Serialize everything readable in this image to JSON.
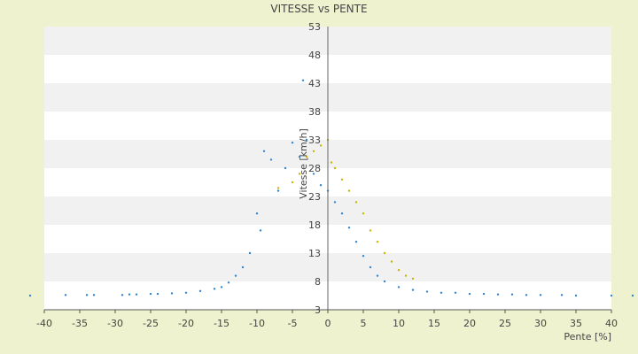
{
  "chart_data": {
    "type": "scatter",
    "title": "VITESSE vs PENTE",
    "xlabel": "Pente [%]",
    "ylabel": "Vitesse [km/h]",
    "xlim": [
      -40,
      40
    ],
    "ylim": [
      3,
      53
    ],
    "x_ticks": [
      -40,
      -35,
      -30,
      -25,
      -20,
      -15,
      -10,
      -5,
      0,
      5,
      10,
      15,
      20,
      25,
      30,
      35,
      40
    ],
    "y_ticks": [
      3,
      8,
      13,
      18,
      23,
      28,
      33,
      38,
      43,
      48,
      53
    ],
    "grid": "horizontal bands",
    "legend": "none",
    "colors": {
      "background": "#eef2cf",
      "band_light": "#ffffff",
      "band_dark": "#f1f1f1",
      "series_blue": "#2f86d6",
      "series_yellow": "#c8b400",
      "axis": "#555555",
      "zero_line": "#666666"
    },
    "series": [
      {
        "color": "#2f86d6",
        "points": [
          [
            -42,
            5.5
          ],
          [
            -37,
            5.6
          ],
          [
            -34,
            5.6
          ],
          [
            -33,
            5.6
          ],
          [
            -29,
            5.6
          ],
          [
            -28,
            5.7
          ],
          [
            -27,
            5.7
          ],
          [
            -25,
            5.8
          ],
          [
            -24,
            5.8
          ],
          [
            -22,
            5.9
          ],
          [
            -20,
            6.0
          ],
          [
            -18,
            6.3
          ],
          [
            -16,
            6.7
          ],
          [
            -15,
            7.0
          ],
          [
            -14,
            7.8
          ],
          [
            -13,
            9.0
          ],
          [
            -12,
            10.5
          ],
          [
            -11,
            13.0
          ],
          [
            -10,
            20.0
          ],
          [
            -9.5,
            17.0
          ],
          [
            -9,
            31.0
          ],
          [
            -8,
            29.5
          ],
          [
            -7,
            24.0
          ],
          [
            -6,
            28.0
          ],
          [
            -5,
            32.5
          ],
          [
            -4,
            30.0
          ],
          [
            -3.5,
            43.5
          ],
          [
            -3,
            33.0
          ],
          [
            -2,
            27.0
          ],
          [
            -1,
            25.0
          ],
          [
            0,
            24.0
          ],
          [
            1,
            22.0
          ],
          [
            2,
            20.0
          ],
          [
            3,
            17.5
          ],
          [
            4,
            15.0
          ],
          [
            5,
            12.5
          ],
          [
            6,
            10.5
          ],
          [
            7,
            9.0
          ],
          [
            8,
            8.0
          ],
          [
            10,
            7.0
          ],
          [
            12,
            6.5
          ],
          [
            14,
            6.2
          ],
          [
            16,
            6.0
          ],
          [
            18,
            6.0
          ],
          [
            20,
            5.8
          ],
          [
            22,
            5.8
          ],
          [
            24,
            5.7
          ],
          [
            26,
            5.7
          ],
          [
            28,
            5.6
          ],
          [
            30,
            5.6
          ],
          [
            33,
            5.6
          ],
          [
            35,
            5.5
          ],
          [
            40,
            5.5
          ],
          [
            43,
            5.5
          ]
        ]
      },
      {
        "color": "#c8b400",
        "points": [
          [
            -7,
            24.5
          ],
          [
            -5,
            25.5
          ],
          [
            -4,
            27.0
          ],
          [
            -3,
            30.0
          ],
          [
            -2,
            31.0
          ],
          [
            -1,
            32.0
          ],
          [
            0,
            33.0
          ],
          [
            0.5,
            29.0
          ],
          [
            1,
            28.0
          ],
          [
            2,
            26.0
          ],
          [
            3,
            24.0
          ],
          [
            4,
            22.0
          ],
          [
            5,
            20.0
          ],
          [
            6,
            17.0
          ],
          [
            7,
            15.0
          ],
          [
            8,
            13.0
          ],
          [
            9,
            11.5
          ],
          [
            10,
            10.0
          ],
          [
            11,
            9.0
          ],
          [
            12,
            8.5
          ]
        ]
      }
    ]
  }
}
